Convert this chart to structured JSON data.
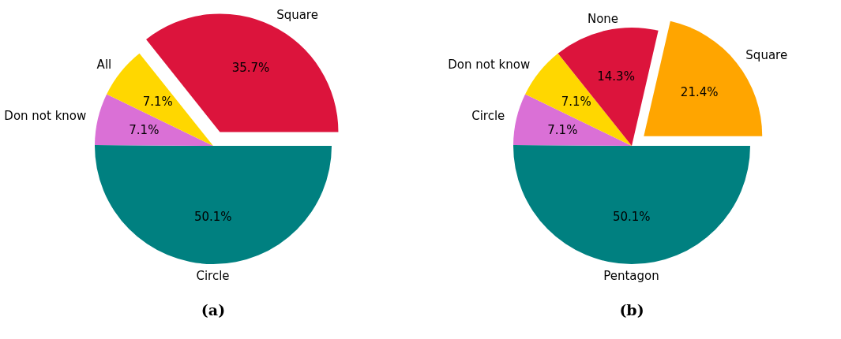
{
  "chart_data": [
    {
      "type": "pie",
      "title": "(a)",
      "categories": [
        "Circle",
        "Don not know",
        "All",
        "Square"
      ],
      "values": [
        50.1,
        7.1,
        7.1,
        35.7
      ],
      "colors": [
        "#008080",
        "#da70d6",
        "#ffd700",
        "#dc143c"
      ],
      "value_labels": [
        "50.1%",
        "7.1%",
        "7.1%",
        "35.7%"
      ]
    },
    {
      "type": "pie",
      "title": "(b)",
      "categories": [
        "Pentagon",
        "Circle",
        "Don not know",
        "None",
        "Square"
      ],
      "values": [
        50.1,
        7.1,
        7.1,
        14.3,
        21.4
      ],
      "colors": [
        "#008080",
        "#da70d6",
        "#ffd700",
        "#dc143c",
        "#ffa500"
      ],
      "value_labels": [
        "50.1%",
        "7.1%",
        "7.1%",
        "14.3%",
        "21.4%"
      ]
    }
  ]
}
